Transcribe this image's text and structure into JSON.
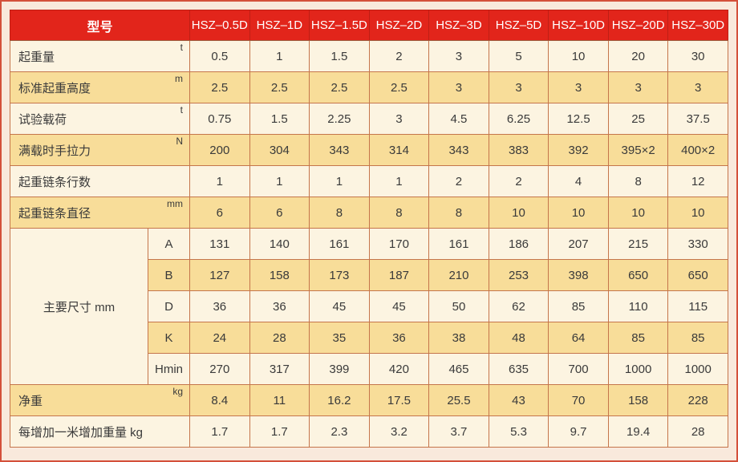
{
  "table": {
    "header": {
      "model_col_label": "型号",
      "models": [
        "HSZ–0.5D",
        "HSZ–1D",
        "HSZ–1.5D",
        "HSZ–2D",
        "HSZ–3D",
        "HSZ–5D",
        "HSZ–10D",
        "HSZ–20D",
        "HSZ–30D"
      ]
    },
    "rows": [
      {
        "label": "起重量",
        "unit": "t",
        "values": [
          "0.5",
          "1",
          "1.5",
          "2",
          "3",
          "5",
          "10",
          "20",
          "30"
        ]
      },
      {
        "label": "标准起重高度",
        "unit": "m",
        "values": [
          "2.5",
          "2.5",
          "2.5",
          "2.5",
          "3",
          "3",
          "3",
          "3",
          "3"
        ]
      },
      {
        "label": "试验载荷",
        "unit": "t",
        "values": [
          "0.75",
          "1.5",
          "2.25",
          "3",
          "4.5",
          "6.25",
          "12.5",
          "25",
          "37.5"
        ]
      },
      {
        "label": "满载时手拉力",
        "unit": "N",
        "values": [
          "200",
          "304",
          "343",
          "314",
          "343",
          "383",
          "392",
          "395×2",
          "400×2"
        ]
      },
      {
        "label": "起重链条行数",
        "unit": "",
        "values": [
          "1",
          "1",
          "1",
          "1",
          "2",
          "2",
          "4",
          "8",
          "12"
        ]
      },
      {
        "label": "起重链条直径",
        "unit": "mm",
        "values": [
          "6",
          "6",
          "8",
          "8",
          "8",
          "10",
          "10",
          "10",
          "10"
        ]
      }
    ],
    "main_dimensions": {
      "label": "主要尺寸  mm",
      "sub_rows": [
        {
          "label": "A",
          "values": [
            "131",
            "140",
            "161",
            "170",
            "161",
            "186",
            "207",
            "215",
            "330"
          ]
        },
        {
          "label": "B",
          "values": [
            "127",
            "158",
            "173",
            "187",
            "210",
            "253",
            "398",
            "650",
            "650"
          ]
        },
        {
          "label": "D",
          "values": [
            "36",
            "36",
            "45",
            "45",
            "50",
            "62",
            "85",
            "110",
            "115"
          ]
        },
        {
          "label": "K",
          "values": [
            "24",
            "28",
            "35",
            "36",
            "38",
            "48",
            "64",
            "85",
            "85"
          ]
        },
        {
          "label": "Hmin",
          "values": [
            "270",
            "317",
            "399",
            "420",
            "465",
            "635",
            "700",
            "1000",
            "1000"
          ]
        }
      ]
    },
    "bottom_rows": [
      {
        "label": "净重",
        "unit": "kg",
        "values": [
          "8.4",
          "11",
          "16.2",
          "17.5",
          "25.5",
          "43",
          "70",
          "158",
          "228"
        ]
      },
      {
        "label": "每增加一米增加重量  kg",
        "unit": "",
        "values": [
          "1.7",
          "1.7",
          "2.3",
          "3.2",
          "3.7",
          "5.3",
          "9.7",
          "19.4",
          "28"
        ]
      }
    ]
  },
  "colors": {
    "header_bg": "#e2251b",
    "header_text": "#ffffff",
    "row_cream": "#fcf4e1",
    "row_yellow": "#f8dd99",
    "grid_line": "#c5754b",
    "table_border": "#60564c",
    "page_bg": "#f9e9dc",
    "page_border": "#d4503a",
    "text": "#3a3a3a"
  }
}
